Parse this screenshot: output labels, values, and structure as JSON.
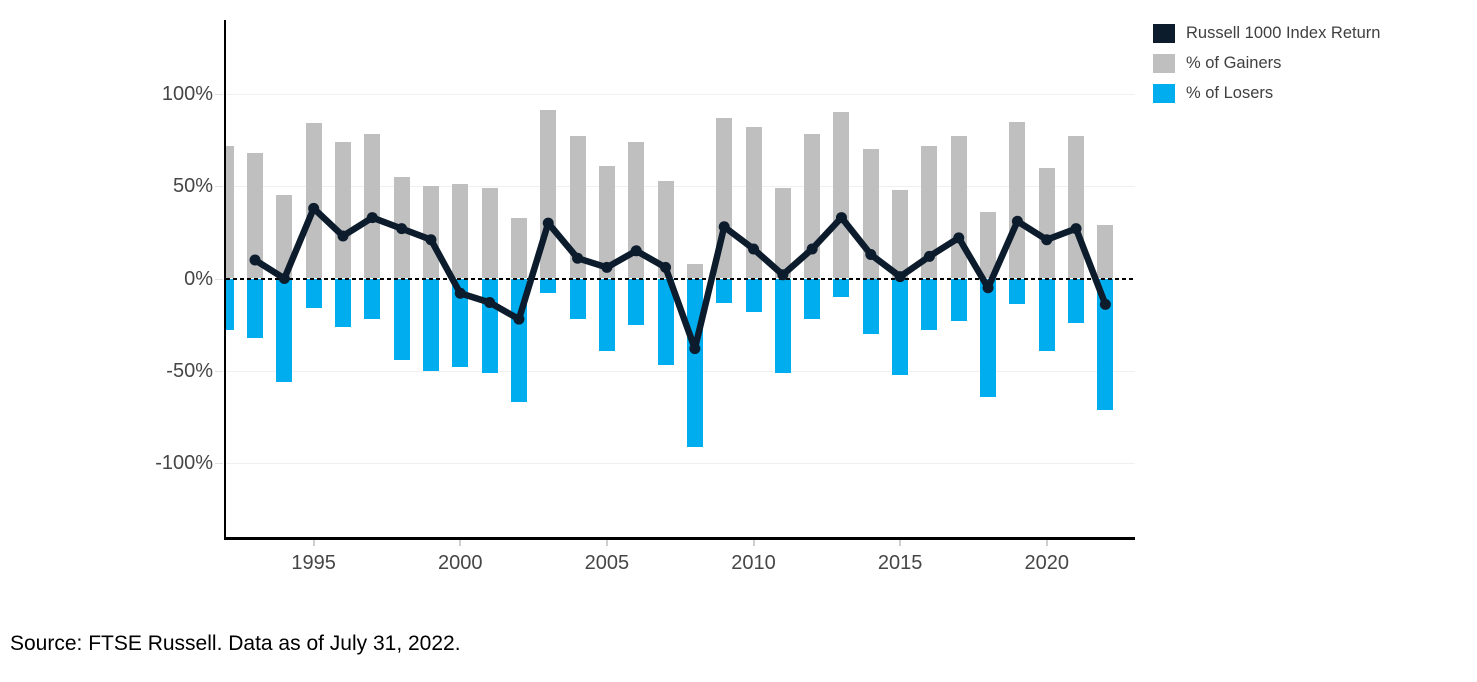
{
  "legend": {
    "items": [
      {
        "label": "Russell 1000 Index Return",
        "color": "#0d1c2c"
      },
      {
        "label": "% of Gainers",
        "color": "#bfbfbf"
      },
      {
        "label": "% of Losers",
        "color": "#00aeef"
      }
    ]
  },
  "source": "Source: FTSE Russell. Data as of July 31, 2022.",
  "chart_data": {
    "type": "combo-bar-line",
    "title": "",
    "x": [
      1992,
      1993,
      1994,
      1995,
      1996,
      1997,
      1998,
      1999,
      2000,
      2001,
      2002,
      2003,
      2004,
      2005,
      2006,
      2007,
      2008,
      2009,
      2010,
      2011,
      2012,
      2013,
      2014,
      2015,
      2016,
      2017,
      2018,
      2019,
      2020,
      2021,
      2022
    ],
    "series": [
      {
        "name": "Russell 1000 Index Return",
        "type": "line",
        "color": "#0d1c2c",
        "values": [
          null,
          10,
          0,
          38,
          23,
          33,
          27,
          21,
          -8,
          -13,
          -22,
          30,
          11,
          6,
          15,
          6,
          -38,
          28,
          16,
          2,
          16,
          33,
          13,
          1,
          12,
          22,
          -5,
          31,
          21,
          27,
          -14
        ]
      },
      {
        "name": "% of Gainers",
        "type": "bar",
        "color": "#bfbfbf",
        "values": [
          72,
          68,
          45,
          84,
          74,
          78,
          55,
          50,
          51,
          49,
          33,
          91,
          77,
          61,
          74,
          53,
          8,
          87,
          82,
          49,
          78,
          90,
          70,
          48,
          72,
          77,
          36,
          85,
          60,
          77,
          29
        ]
      },
      {
        "name": "% of Losers",
        "type": "bar",
        "color": "#00aeef",
        "values": [
          -28,
          -32,
          -56,
          -16,
          -26,
          -22,
          -44,
          -50,
          -48,
          -51,
          -67,
          -8,
          -22,
          -39,
          -25,
          -47,
          -91,
          -13,
          -18,
          -51,
          -22,
          -10,
          -30,
          -52,
          -28,
          -23,
          -64,
          -14,
          -39,
          -24,
          -71
        ]
      }
    ],
    "y_ticks": [
      {
        "label": "100%",
        "value": 100
      },
      {
        "label": "50%",
        "value": 50
      },
      {
        "label": "0%",
        "value": 0
      },
      {
        "label": "-50%",
        "value": -50
      },
      {
        "label": "-100%",
        "value": -100
      }
    ],
    "x_ticks": [
      {
        "label": "1995",
        "year": 1995
      },
      {
        "label": "2000",
        "year": 2000
      },
      {
        "label": "2005",
        "year": 2005
      },
      {
        "label": "2010",
        "year": 2010
      },
      {
        "label": "2015",
        "year": 2015
      },
      {
        "label": "2020",
        "year": 2020
      }
    ],
    "ylim": [
      -140,
      140
    ],
    "grid": "faint-horizontal",
    "zero_line": "dashed-black",
    "legend_position": "top-right"
  }
}
